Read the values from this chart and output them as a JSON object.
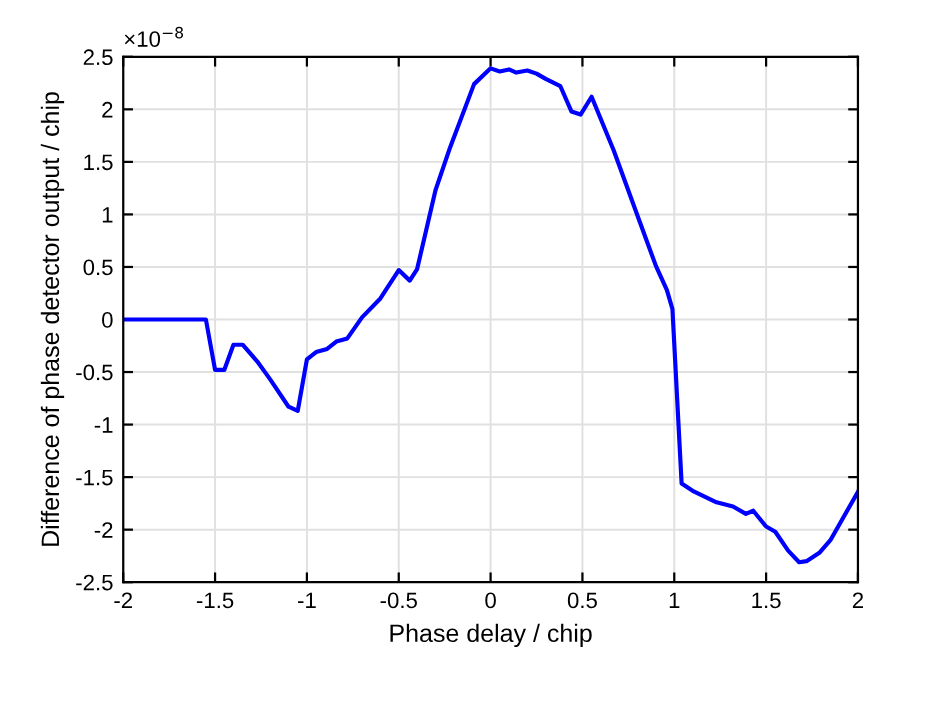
{
  "chart_data": {
    "type": "line",
    "xlabel": "Phase delay / chip",
    "ylabel": "Difference of phase detector output / chip",
    "annotations": [
      "×10$^{−8}$"
    ],
    "series": [
      {
        "color": "#0000ff",
        "x": [
          -2,
          -1.55,
          -1.5,
          -1.45,
          -1.4,
          -1.35,
          -1.27,
          -1.2,
          -1.1,
          -1.05,
          -1.0,
          -0.95,
          -0.89,
          -0.84,
          -0.78,
          -0.7,
          -0.6,
          -0.5,
          -0.44,
          -0.4,
          -0.3,
          -0.22,
          -0.09,
          0.0,
          0.05,
          0.1,
          0.14,
          0.2,
          0.25,
          0.3,
          0.38,
          0.44,
          0.49,
          0.55,
          0.67,
          0.81,
          0.9,
          0.96,
          0.99,
          1.04,
          1.1,
          1.23,
          1.32,
          1.39,
          1.43,
          1.5,
          1.55,
          1.62,
          1.68,
          1.72,
          1.79,
          1.85,
          2.0
        ],
        "values": [
          0,
          0,
          -0.48,
          -0.48,
          -0.24,
          -0.24,
          -0.4,
          -0.57,
          -0.83,
          -0.87,
          -0.38,
          -0.31,
          -0.28,
          -0.21,
          -0.18,
          0.02,
          0.2,
          0.47,
          0.37,
          0.48,
          1.23,
          1.64,
          2.24,
          2.39,
          2.36,
          2.38,
          2.35,
          2.37,
          2.34,
          2.29,
          2.22,
          1.98,
          1.95,
          2.12,
          1.61,
          0.94,
          0.51,
          0.28,
          0.1,
          -1.56,
          -1.63,
          -1.74,
          -1.78,
          -1.85,
          -1.82,
          -1.97,
          -2.02,
          -2.2,
          -2.31,
          -2.3,
          -2.22,
          -2.1,
          -1.64
        ]
      }
    ],
    "xlim": [
      -2,
      2
    ],
    "ylim": [
      -2.5,
      2.5
    ],
    "xticks": [
      -2,
      -1.5,
      -1,
      -0.5,
      0,
      0.5,
      1,
      1.5,
      2
    ],
    "yticks": [
      -2.5,
      -2,
      -1.5,
      -1,
      -0.5,
      0,
      0.5,
      1,
      1.5,
      2,
      2.5
    ],
    "grid": true,
    "marker": "none",
    "line_style": "solid"
  }
}
